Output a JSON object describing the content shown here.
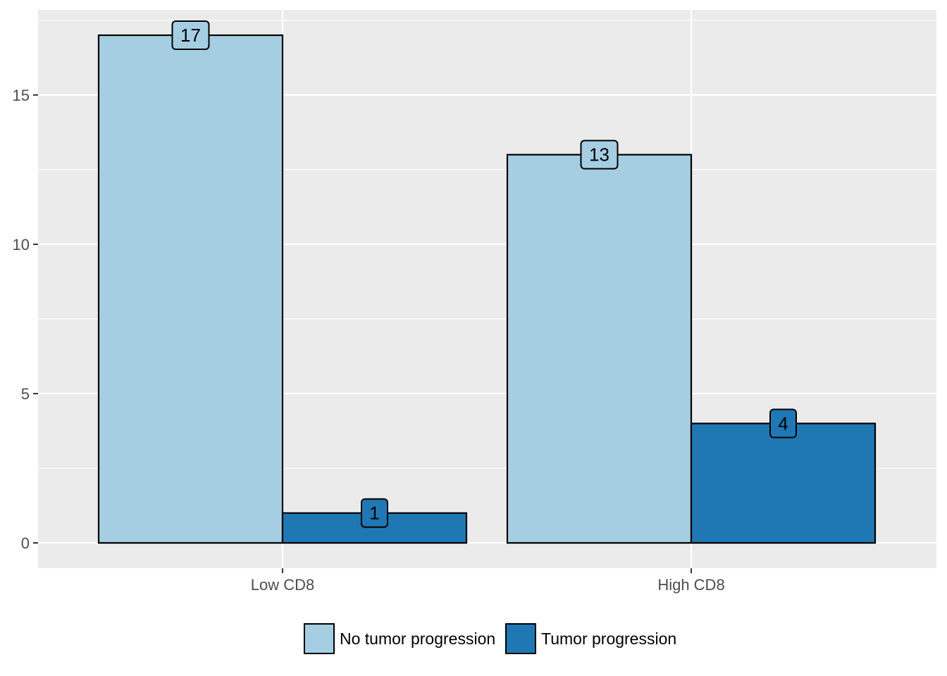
{
  "chart_data": {
    "type": "bar",
    "categories": [
      "Low CD8",
      "High CD8"
    ],
    "series": [
      {
        "name": "No tumor progression",
        "values": [
          17,
          13
        ],
        "color": "#a6cee3"
      },
      {
        "name": "Tumor progression",
        "values": [
          1,
          4
        ],
        "color": "#1f78b4"
      }
    ],
    "title": "",
    "xlabel": "",
    "ylabel": "",
    "ylim": [
      0,
      17.85
    ],
    "y_ticks": [
      0,
      5,
      10,
      15
    ],
    "y_tick_labels": [
      "0",
      "5",
      "10",
      "15"
    ],
    "grid": true,
    "legend_position": "bottom",
    "panel_background": "#ebebeb",
    "grid_color": "#ffffff",
    "bar_outline": "#000000"
  }
}
